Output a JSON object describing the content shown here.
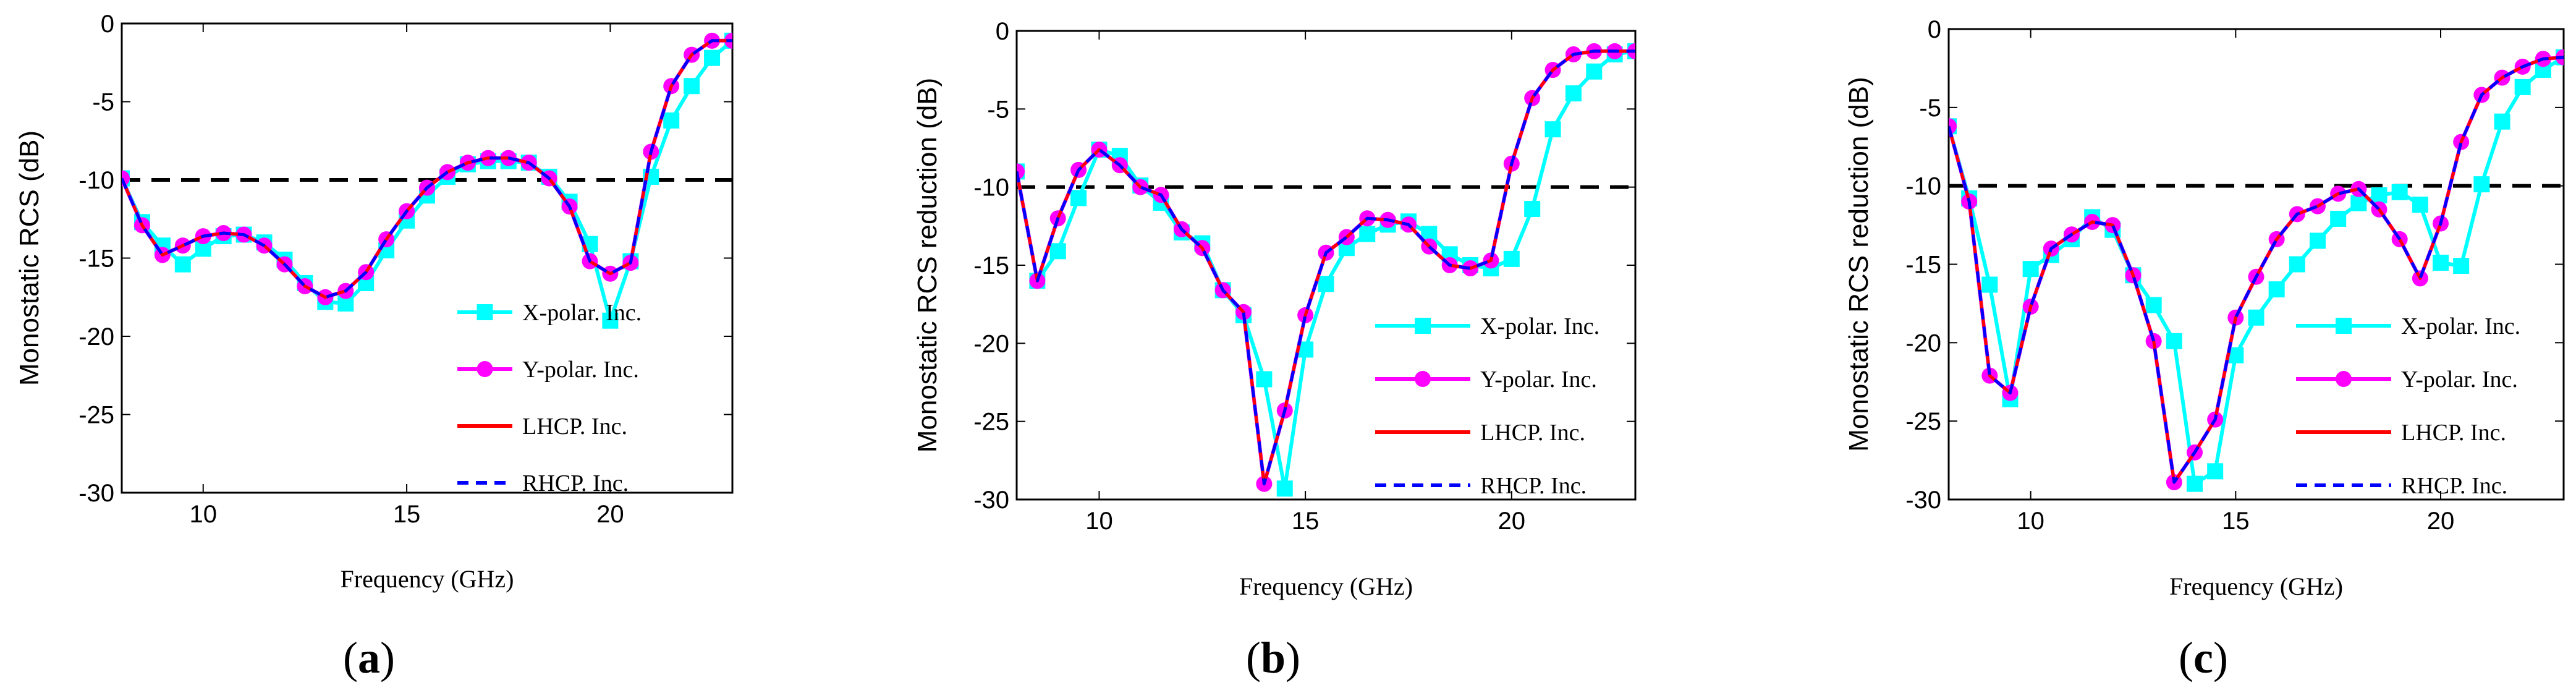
{
  "figure": {
    "legend": [
      "X-polar. Inc.",
      "Y-polar. Inc.",
      "LHCP. Inc.",
      "RHCP. Inc."
    ],
    "colors": {
      "x_polar": "#00ffff",
      "y_polar": "#ff00ff",
      "lhcp": "#ff0000",
      "rhcp": "#0000ff",
      "threshold": "#000000"
    }
  },
  "chart_data": [
    {
      "type": "line",
      "panel_label": "a",
      "title": "",
      "xlabel": "Frequency (GHz)",
      "ylabel": "Monostatic RCS (dB)",
      "xlim": [
        8,
        23
      ],
      "ylim": [
        -30,
        0
      ],
      "xticks": [
        10,
        15,
        20
      ],
      "yticks": [
        0,
        -5,
        -10,
        -15,
        -20,
        -25,
        -30
      ],
      "threshold": -10,
      "x": [
        8,
        8.5,
        9,
        9.5,
        10,
        10.5,
        11,
        11.5,
        12,
        12.5,
        13,
        13.5,
        14,
        14.5,
        15,
        15.5,
        16,
        16.5,
        17,
        17.5,
        18,
        18.5,
        19,
        19.5,
        20,
        20.5,
        21,
        21.5,
        22,
        22.5,
        23
      ],
      "series": [
        {
          "name": "X-polar. Inc.",
          "values": [
            -9.9,
            -12.7,
            -14.2,
            -15.4,
            -14.4,
            -13.6,
            -13.5,
            -14.0,
            -15.1,
            -16.6,
            -17.8,
            -17.9,
            -16.6,
            -14.5,
            -12.6,
            -11.0,
            -9.8,
            -9.0,
            -8.8,
            -8.8,
            -8.9,
            -9.8,
            -11.4,
            -14.1,
            -19.0,
            -15.2,
            -9.8,
            -6.2,
            -4.0,
            -2.2,
            -1.1
          ]
        },
        {
          "name": "Y-polar. Inc.",
          "values": [
            -9.9,
            -12.9,
            -14.8,
            -14.2,
            -13.6,
            -13.4,
            -13.5,
            -14.2,
            -15.4,
            -16.8,
            -17.5,
            -17.1,
            -15.9,
            -13.8,
            -12.0,
            -10.5,
            -9.5,
            -8.9,
            -8.6,
            -8.6,
            -8.9,
            -9.9,
            -11.7,
            -15.2,
            -16.0,
            -15.3,
            -8.2,
            -4.0,
            -2.0,
            -1.1,
            -1.1
          ]
        },
        {
          "name": "LHCP. Inc.",
          "values": [
            -9.9,
            -12.9,
            -14.8,
            -14.2,
            -13.6,
            -13.4,
            -13.5,
            -14.2,
            -15.4,
            -16.8,
            -17.5,
            -17.1,
            -15.9,
            -13.8,
            -12.0,
            -10.5,
            -9.5,
            -8.9,
            -8.6,
            -8.6,
            -8.9,
            -9.9,
            -11.7,
            -15.2,
            -16.0,
            -15.3,
            -8.2,
            -4.0,
            -2.0,
            -1.1,
            -1.1
          ]
        },
        {
          "name": "RHCP. Inc.",
          "values": [
            -9.9,
            -12.9,
            -14.8,
            -14.2,
            -13.6,
            -13.4,
            -13.5,
            -14.2,
            -15.4,
            -16.8,
            -17.5,
            -17.1,
            -15.9,
            -13.8,
            -12.0,
            -10.5,
            -9.5,
            -8.9,
            -8.6,
            -8.6,
            -8.9,
            -9.9,
            -11.7,
            -15.2,
            -16.0,
            -15.3,
            -8.2,
            -4.0,
            -2.0,
            -1.1,
            -1.1
          ]
        }
      ]
    },
    {
      "type": "line",
      "panel_label": "b",
      "title": "",
      "xlabel": "Frequency (GHz)",
      "ylabel": "Monostatic RCS reduction (dB)",
      "xlim": [
        8,
        23
      ],
      "ylim": [
        -30,
        0
      ],
      "xticks": [
        10,
        15,
        20
      ],
      "yticks": [
        0,
        -5,
        -10,
        -15,
        -20,
        -25,
        -30
      ],
      "threshold": -10,
      "x": [
        8,
        8.5,
        9,
        9.5,
        10,
        10.5,
        11,
        11.5,
        12,
        12.5,
        13,
        13.5,
        14,
        14.5,
        15,
        15.5,
        16,
        16.5,
        17,
        17.5,
        18,
        18.5,
        19,
        19.5,
        20,
        20.5,
        21,
        21.5,
        22,
        22.5,
        23
      ],
      "series": [
        {
          "name": "X-polar. Inc.",
          "values": [
            -9.0,
            -16.0,
            -14.1,
            -10.7,
            -7.6,
            -8.0,
            -9.9,
            -11.0,
            -12.9,
            -13.6,
            -16.6,
            -18.2,
            -22.3,
            -29.3,
            -20.4,
            -16.2,
            -13.9,
            -13.0,
            -12.4,
            -12.2,
            -13.0,
            -14.3,
            -15.0,
            -15.2,
            -14.6,
            -11.4,
            -6.3,
            -4.0,
            -2.6,
            -1.5,
            -1.3
          ]
        },
        {
          "name": "Y-polar. Inc.",
          "values": [
            -9.0,
            -16.0,
            -12.0,
            -8.9,
            -7.6,
            -8.6,
            -10.0,
            -10.5,
            -12.7,
            -13.9,
            -16.6,
            -18.0,
            -29.0,
            -24.3,
            -18.2,
            -14.2,
            -13.2,
            -12.0,
            -12.1,
            -12.4,
            -13.8,
            -15.0,
            -15.2,
            -14.7,
            -8.5,
            -4.3,
            -2.5,
            -1.5,
            -1.3,
            -1.3,
            -1.3
          ]
        },
        {
          "name": "LHCP. Inc.",
          "values": [
            -9.0,
            -16.0,
            -12.0,
            -8.9,
            -7.6,
            -8.6,
            -10.0,
            -10.5,
            -12.7,
            -13.9,
            -16.6,
            -18.0,
            -29.0,
            -24.3,
            -18.2,
            -14.2,
            -13.2,
            -12.0,
            -12.1,
            -12.4,
            -13.8,
            -15.0,
            -15.2,
            -14.7,
            -8.5,
            -4.3,
            -2.5,
            -1.5,
            -1.3,
            -1.3,
            -1.3
          ]
        },
        {
          "name": "RHCP. Inc.",
          "values": [
            -9.0,
            -16.0,
            -12.0,
            -8.9,
            -7.6,
            -8.6,
            -10.0,
            -10.5,
            -12.7,
            -13.9,
            -16.6,
            -18.0,
            -29.0,
            -24.3,
            -18.2,
            -14.2,
            -13.2,
            -12.0,
            -12.1,
            -12.4,
            -13.8,
            -15.0,
            -15.2,
            -14.7,
            -8.5,
            -4.3,
            -2.5,
            -1.5,
            -1.3,
            -1.3,
            -1.3
          ]
        }
      ]
    },
    {
      "type": "line",
      "panel_label": "c",
      "title": "",
      "xlabel": "Frequency (GHz)",
      "ylabel": "Monostatic RCS reduction (dB)",
      "xlim": [
        8,
        23
      ],
      "ylim": [
        -30,
        0
      ],
      "xticks": [
        10,
        15,
        20
      ],
      "yticks": [
        0,
        -5,
        -10,
        -15,
        -20,
        -25,
        -30
      ],
      "threshold": -10,
      "x": [
        8,
        8.5,
        9,
        9.5,
        10,
        10.5,
        11,
        11.5,
        12,
        12.5,
        13,
        13.5,
        14,
        14.5,
        15,
        15.5,
        16,
        16.5,
        17,
        17.5,
        18,
        18.5,
        19,
        19.5,
        20,
        20.5,
        21,
        21.5,
        22,
        22.5,
        23
      ],
      "series": [
        {
          "name": "X-polar. Inc.",
          "values": [
            -6.2,
            -10.8,
            -16.3,
            -23.6,
            -15.3,
            -14.4,
            -13.4,
            -12.0,
            -12.8,
            -15.7,
            -17.6,
            -19.9,
            -29.0,
            -28.2,
            -20.8,
            -18.4,
            -16.6,
            -15.0,
            -13.5,
            -12.1,
            -11.1,
            -10.6,
            -10.4,
            -11.2,
            -14.9,
            -15.1,
            -9.9,
            -5.9,
            -3.7,
            -2.6,
            -1.8
          ]
        },
        {
          "name": "Y-polar. Inc.",
          "values": [
            -6.2,
            -11.0,
            -22.1,
            -23.2,
            -17.7,
            -14.0,
            -13.1,
            -12.3,
            -12.5,
            -15.7,
            -19.9,
            -28.9,
            -27.0,
            -24.9,
            -18.4,
            -15.8,
            -13.4,
            -11.8,
            -11.3,
            -10.5,
            -10.2,
            -11.5,
            -13.4,
            -15.9,
            -12.4,
            -7.2,
            -4.2,
            -3.1,
            -2.4,
            -1.9,
            -1.8
          ]
        },
        {
          "name": "LHCP. Inc.",
          "values": [
            -6.2,
            -11.0,
            -22.1,
            -23.2,
            -17.7,
            -14.0,
            -13.1,
            -12.3,
            -12.5,
            -15.7,
            -19.9,
            -28.9,
            -27.0,
            -24.9,
            -18.4,
            -15.8,
            -13.4,
            -11.8,
            -11.3,
            -10.5,
            -10.2,
            -11.5,
            -13.4,
            -15.9,
            -12.4,
            -7.2,
            -4.2,
            -3.1,
            -2.4,
            -1.9,
            -1.8
          ]
        },
        {
          "name": "RHCP. Inc.",
          "values": [
            -6.2,
            -11.0,
            -22.1,
            -23.2,
            -17.7,
            -14.0,
            -13.1,
            -12.3,
            -12.5,
            -15.7,
            -19.9,
            -28.9,
            -27.0,
            -24.9,
            -18.4,
            -15.8,
            -13.4,
            -11.8,
            -11.3,
            -10.5,
            -10.2,
            -11.5,
            -13.4,
            -15.9,
            -12.4,
            -7.2,
            -4.2,
            -3.1,
            -2.4,
            -1.9,
            -1.8
          ]
        }
      ]
    }
  ]
}
